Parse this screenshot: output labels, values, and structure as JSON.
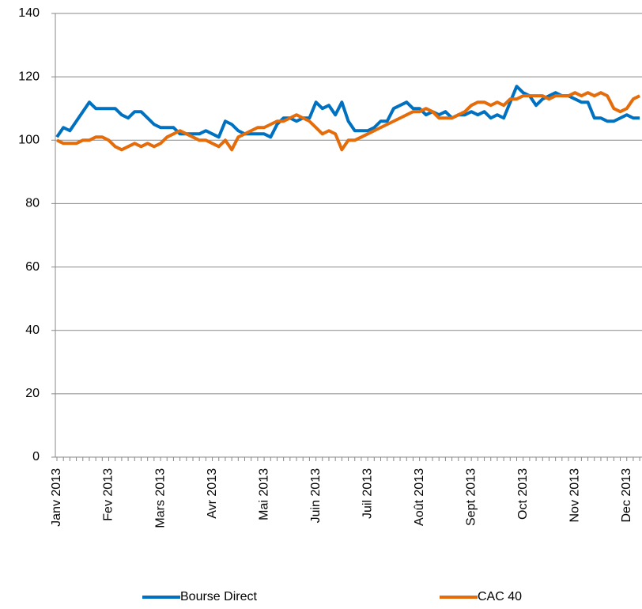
{
  "chart_data": {
    "type": "line",
    "categories": [
      "Janv 2013",
      null,
      null,
      null,
      null,
      null,
      null,
      null,
      "Fev 2013",
      null,
      null,
      null,
      null,
      null,
      null,
      null,
      "Mars 2013",
      null,
      null,
      null,
      null,
      null,
      null,
      null,
      "Avr 2013",
      null,
      null,
      null,
      null,
      null,
      null,
      null,
      "Mai 2013",
      null,
      null,
      null,
      null,
      null,
      null,
      null,
      "Juin 2013",
      null,
      null,
      null,
      null,
      null,
      null,
      null,
      "Juil 2013",
      null,
      null,
      null,
      null,
      null,
      null,
      null,
      "Août 2013",
      null,
      null,
      null,
      null,
      null,
      null,
      null,
      "Sept 2013",
      null,
      null,
      null,
      null,
      null,
      null,
      null,
      "Oct 2013",
      null,
      null,
      null,
      null,
      null,
      null,
      null,
      "Nov 2013",
      null,
      null,
      null,
      null,
      null,
      null,
      null,
      "Dec 2013",
      null,
      null
    ],
    "series": [
      {
        "name": "Bourse Direct",
        "color": "#0070c0",
        "values": [
          101,
          104,
          103,
          106,
          109,
          112,
          110,
          110,
          110,
          110,
          108,
          107,
          109,
          109,
          107,
          105,
          104,
          104,
          104,
          102,
          102,
          102,
          102,
          103,
          102,
          101,
          106,
          105,
          103,
          102,
          102,
          102,
          102,
          101,
          105,
          107,
          107,
          106,
          107,
          107,
          112,
          110,
          111,
          108,
          112,
          106,
          103,
          103,
          103,
          104,
          106,
          106,
          110,
          111,
          112,
          110,
          110,
          108,
          109,
          108,
          109,
          107,
          108,
          108,
          109,
          108,
          109,
          107,
          108,
          107,
          112,
          117,
          115,
          114,
          111,
          113,
          114,
          115,
          114,
          114,
          113,
          112,
          112,
          107,
          107,
          106,
          106,
          107,
          108,
          107,
          107
        ]
      },
      {
        "name": "CAC 40",
        "color": "#e46c0a",
        "values": [
          100,
          99,
          99,
          99,
          100,
          100,
          101,
          101,
          100,
          98,
          97,
          98,
          99,
          98,
          99,
          98,
          99,
          101,
          102,
          103,
          102,
          101,
          100,
          100,
          99,
          98,
          100,
          97,
          101,
          102,
          103,
          104,
          104,
          105,
          106,
          106,
          107,
          108,
          107,
          106,
          104,
          102,
          103,
          102,
          97,
          100,
          100,
          101,
          102,
          103,
          104,
          105,
          106,
          107,
          108,
          109,
          109,
          110,
          109,
          107,
          107,
          107,
          108,
          109,
          111,
          112,
          112,
          111,
          112,
          111,
          113,
          113,
          114,
          114,
          114,
          114,
          113,
          114,
          114,
          114,
          115,
          114,
          115,
          114,
          115,
          114,
          110,
          109,
          110,
          113,
          114
        ]
      }
    ],
    "ylim": [
      0,
      140
    ],
    "yticks": [
      0,
      20,
      40,
      60,
      80,
      100,
      120,
      140
    ],
    "grid": true,
    "legend": "bottom"
  }
}
